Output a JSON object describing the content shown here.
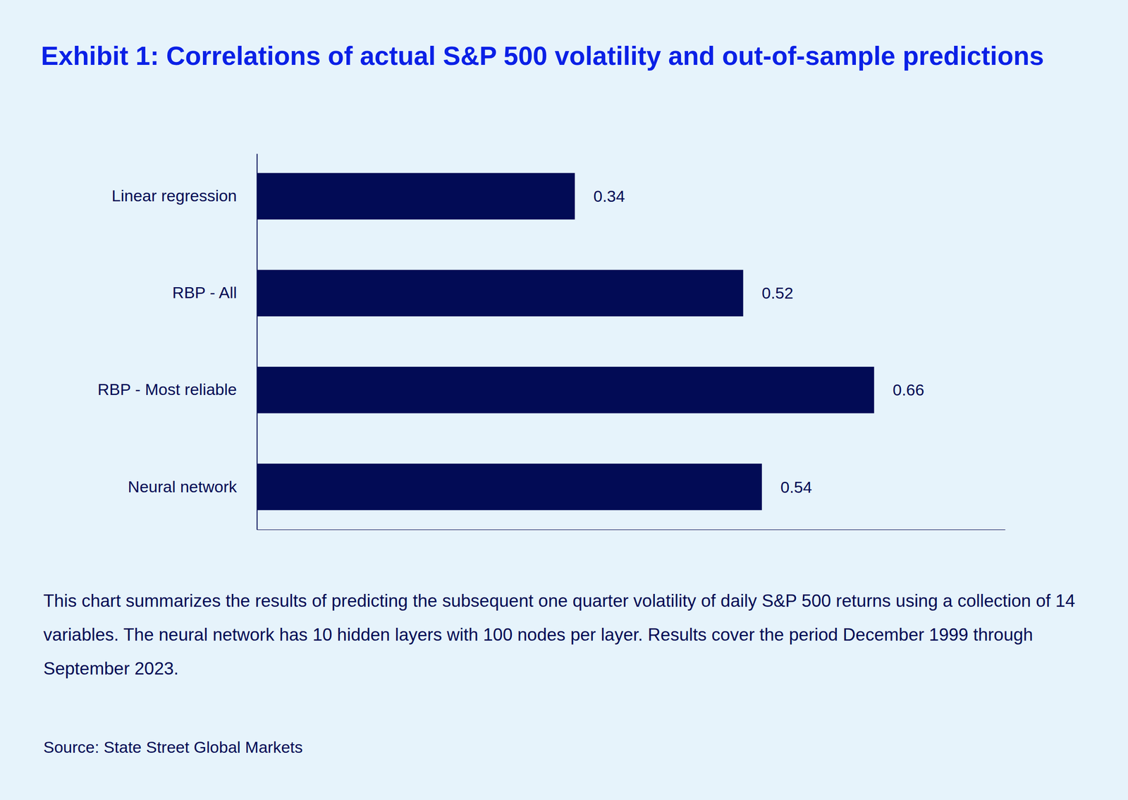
{
  "chart_data": {
    "type": "bar",
    "orientation": "horizontal",
    "title": "Exhibit 1: Correlations of actual S&P 500 volatility and out-of-sample predictions",
    "categories": [
      "Linear regression",
      "RBP - All",
      "RBP - Most reliable",
      "Neural network"
    ],
    "values": [
      0.34,
      0.52,
      0.66,
      0.54
    ],
    "color": "#020b55",
    "xlim": [
      0,
      0.8
    ],
    "xticks": [],
    "data_labels": true,
    "tick_labels": "y",
    "grid": false,
    "caption": "This chart summarizes the results of predicting the subsequent one quarter volatility of daily S&P 500 returns using a collection of 14 variables. The neural network has 10 hidden layers with 100 nodes per layer. Results cover the period December 1999 through September 2023.",
    "source": "Source: State Street Global Markets"
  }
}
